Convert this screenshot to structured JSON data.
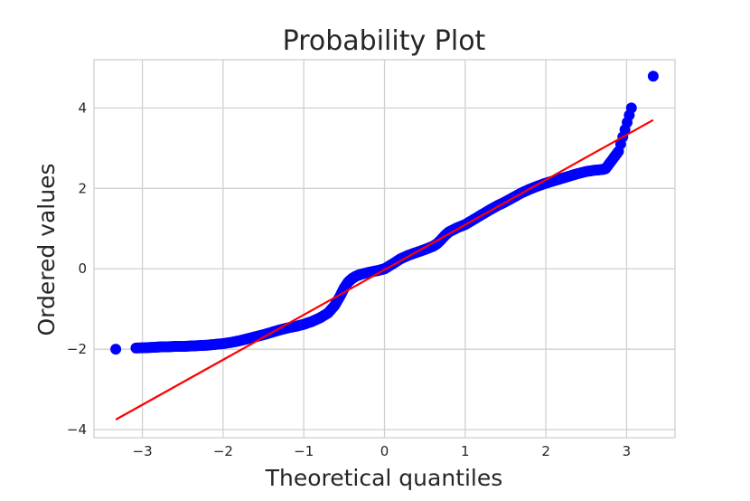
{
  "chart_data": {
    "type": "scatter",
    "title": "Probability Plot",
    "xlabel": "Theoretical quantiles",
    "ylabel": "Ordered values",
    "xlim": [
      -3.6,
      3.6
    ],
    "ylim": [
      -4.2,
      5.2
    ],
    "xticks": [
      -3,
      -2,
      -1,
      0,
      1,
      2,
      3
    ],
    "yticks": [
      -4,
      -2,
      0,
      2,
      4
    ],
    "xtick_labels": [
      "−3",
      "−2",
      "−1",
      "0",
      "1",
      "2",
      "3"
    ],
    "ytick_labels": [
      "−4",
      "−2",
      "0",
      "2",
      "4"
    ],
    "grid": true,
    "series": [
      {
        "kind": "points",
        "color": "#0000ff",
        "points": [
          [
            -3.33,
            -2.0
          ],
          [
            -3.08,
            -1.97
          ],
          [
            -2.94,
            -1.96
          ],
          [
            -2.84,
            -1.95
          ],
          [
            -2.76,
            -1.94
          ],
          [
            -2.69,
            -1.94
          ],
          [
            -2.6,
            -1.93
          ],
          [
            -2.5,
            -1.93
          ],
          [
            -2.4,
            -1.92
          ],
          [
            -2.3,
            -1.91
          ],
          [
            -2.2,
            -1.9
          ],
          [
            -2.1,
            -1.88
          ],
          [
            -2.0,
            -1.86
          ],
          [
            -1.9,
            -1.83
          ],
          [
            -1.8,
            -1.79
          ],
          [
            -1.7,
            -1.74
          ],
          [
            -1.6,
            -1.69
          ],
          [
            -1.5,
            -1.64
          ],
          [
            -1.4,
            -1.58
          ],
          [
            -1.3,
            -1.52
          ],
          [
            -1.2,
            -1.47
          ],
          [
            -1.1,
            -1.43
          ],
          [
            -1.0,
            -1.38
          ],
          [
            -0.9,
            -1.31
          ],
          [
            -0.8,
            -1.22
          ],
          [
            -0.7,
            -1.1
          ],
          [
            -0.62,
            -0.92
          ],
          [
            -0.55,
            -0.68
          ],
          [
            -0.5,
            -0.48
          ],
          [
            -0.45,
            -0.33
          ],
          [
            -0.4,
            -0.24
          ],
          [
            -0.35,
            -0.18
          ],
          [
            -0.3,
            -0.14
          ],
          [
            -0.2,
            -0.09
          ],
          [
            -0.1,
            -0.05
          ],
          [
            0.0,
            0.0
          ],
          [
            0.1,
            0.12
          ],
          [
            0.2,
            0.25
          ],
          [
            0.3,
            0.34
          ],
          [
            0.4,
            0.41
          ],
          [
            0.5,
            0.48
          ],
          [
            0.6,
            0.56
          ],
          [
            0.65,
            0.62
          ],
          [
            0.7,
            0.72
          ],
          [
            0.75,
            0.83
          ],
          [
            0.8,
            0.92
          ],
          [
            0.9,
            1.02
          ],
          [
            1.0,
            1.1
          ],
          [
            1.1,
            1.22
          ],
          [
            1.2,
            1.34
          ],
          [
            1.3,
            1.46
          ],
          [
            1.4,
            1.57
          ],
          [
            1.5,
            1.67
          ],
          [
            1.6,
            1.78
          ],
          [
            1.7,
            1.89
          ],
          [
            1.8,
            1.98
          ],
          [
            1.9,
            2.06
          ],
          [
            2.0,
            2.13
          ],
          [
            2.1,
            2.19
          ],
          [
            2.2,
            2.25
          ],
          [
            2.3,
            2.31
          ],
          [
            2.4,
            2.37
          ],
          [
            2.5,
            2.42
          ],
          [
            2.6,
            2.45
          ],
          [
            2.7,
            2.47
          ],
          [
            2.74,
            2.49
          ],
          [
            2.83,
            2.73
          ],
          [
            2.9,
            2.92
          ],
          [
            3.06,
            4.0
          ],
          [
            3.33,
            4.79
          ]
        ]
      },
      {
        "kind": "line",
        "color": "#ff0000",
        "x": [
          -3.33,
          3.33
        ],
        "y": [
          -3.75,
          3.7
        ]
      }
    ]
  }
}
